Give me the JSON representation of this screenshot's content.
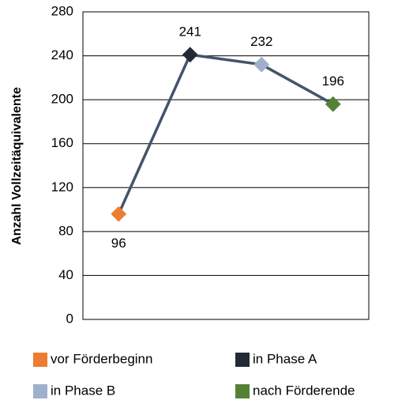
{
  "chart_data": {
    "type": "line",
    "y_label": "Anzahl Vollzeitäquivalente",
    "categories": [
      "vor Förderbeginn",
      "in Phase A",
      "in Phase B",
      "nach Förderende"
    ],
    "series": [
      {
        "values": [
          96,
          241,
          232,
          196
        ],
        "color": "#44546a",
        "point_colors": [
          "#ed7d31",
          "#222a35",
          "#9fb0cc",
          "#548235"
        ]
      }
    ],
    "ylim": [
      0,
      280
    ],
    "yticks": [
      0,
      40,
      80,
      120,
      160,
      200,
      240,
      280
    ],
    "grid": true
  }
}
